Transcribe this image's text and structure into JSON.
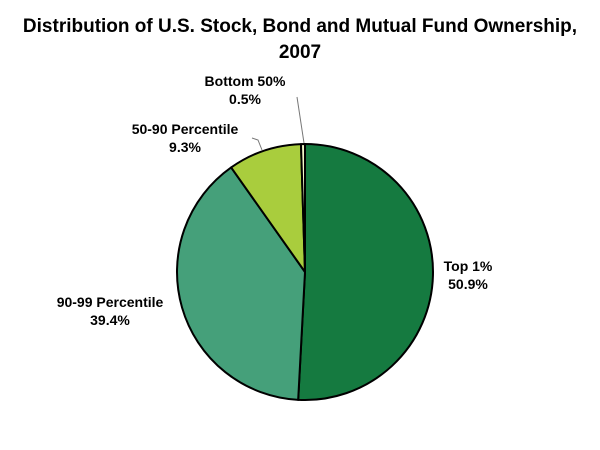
{
  "chart_data": {
    "type": "pie",
    "title": "Distribution of U.S. Stock, Bond and Mutual Fund Ownership, 2007",
    "start_angle": "12 o'clock",
    "direction": "clockwise",
    "slices": [
      {
        "label": "Top 1%",
        "value": 50.9,
        "value_label": "50.9%",
        "color": "#157a40"
      },
      {
        "label": "90-99 Percentile",
        "value": 39.4,
        "value_label": "39.4%",
        "color": "#45a07a"
      },
      {
        "label": "50-90 Percentile",
        "value": 9.3,
        "value_label": "9.3%",
        "color": "#a9cd3d"
      },
      {
        "label": "Bottom 50%",
        "value": 0.5,
        "value_label": "0.5%",
        "color": "#f2f6c8"
      }
    ]
  }
}
